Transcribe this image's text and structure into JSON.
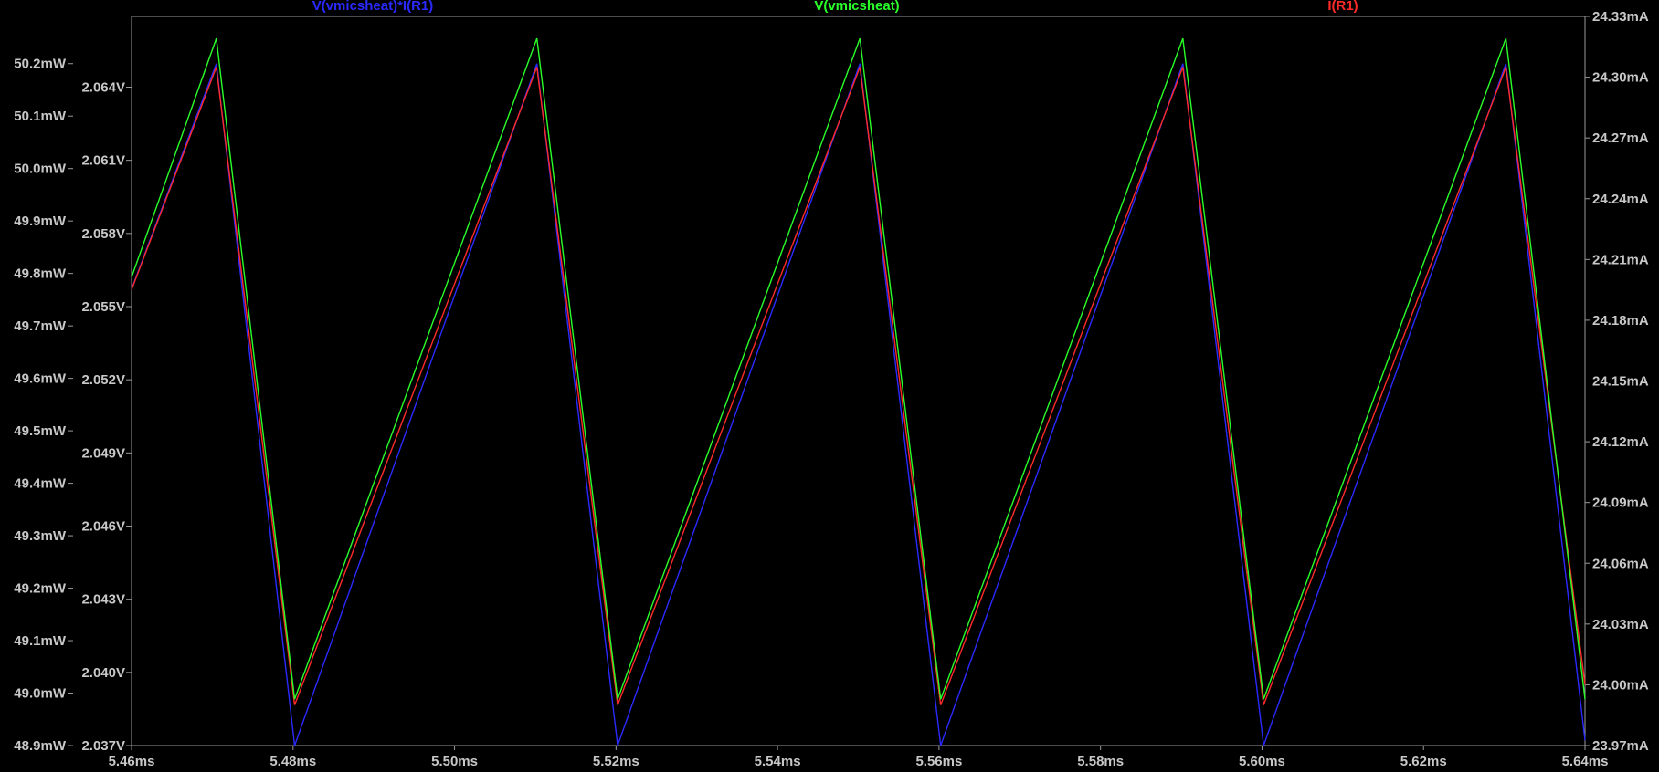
{
  "chart_data": {
    "type": "line",
    "x_unit": "ms",
    "xlim": [
      5.46,
      5.64
    ],
    "x_ticks": [
      "5.46ms",
      "5.48ms",
      "5.50ms",
      "5.52ms",
      "5.54ms",
      "5.56ms",
      "5.58ms",
      "5.60ms",
      "5.62ms",
      "5.64ms"
    ],
    "x_tick_values": [
      5.46,
      5.48,
      5.5,
      5.52,
      5.54,
      5.56,
      5.58,
      5.6,
      5.62,
      5.64
    ],
    "axes": {
      "power": {
        "ylim": [
          48.9,
          50.29
        ],
        "ticks": [
          "50.2mW",
          "50.1mW",
          "50.0mW",
          "49.9mW",
          "49.8mW",
          "49.7mW",
          "49.6mW",
          "49.5mW",
          "49.4mW",
          "49.3mW",
          "49.2mW",
          "49.1mW",
          "49.0mW",
          "48.9mW"
        ],
        "tick_values": [
          50.2,
          50.1,
          50.0,
          49.9,
          49.8,
          49.7,
          49.6,
          49.5,
          49.4,
          49.3,
          49.2,
          49.1,
          49.0,
          48.9
        ]
      },
      "voltage": {
        "ylim": [
          2.037,
          2.0669
        ],
        "ticks": [
          "2.064V",
          "2.061V",
          "2.058V",
          "2.055V",
          "2.052V",
          "2.049V",
          "2.046V",
          "2.043V",
          "2.040V",
          "2.037V"
        ],
        "tick_values": [
          2.064,
          2.061,
          2.058,
          2.055,
          2.052,
          2.049,
          2.046,
          2.043,
          2.04,
          2.037
        ]
      },
      "current": {
        "ylim": [
          23.97,
          24.33
        ],
        "ticks": [
          "24.33mA",
          "24.30mA",
          "24.27mA",
          "24.24mA",
          "24.21mA",
          "24.18mA",
          "24.15mA",
          "24.12mA",
          "24.09mA",
          "24.06mA",
          "24.03mA",
          "24.00mA",
          "23.97mA"
        ],
        "tick_values": [
          24.33,
          24.3,
          24.27,
          24.24,
          24.21,
          24.18,
          24.15,
          24.12,
          24.09,
          24.06,
          24.03,
          24.0,
          23.97
        ]
      }
    },
    "series": [
      {
        "name": "V(vmicsheat)*I(R1)",
        "axis": "power",
        "color": "#2a2aff",
        "x": [
          5.46,
          5.4705,
          5.4802,
          5.5102,
          5.5202,
          5.5502,
          5.5602,
          5.5902,
          5.6002,
          5.6302,
          5.64
        ],
        "values": [
          49.77,
          50.2,
          48.9,
          50.2,
          48.9,
          50.2,
          48.9,
          50.2,
          48.9,
          50.2,
          48.91
        ]
      },
      {
        "name": "V(vmicsheat)",
        "axis": "voltage",
        "color": "#2aff2a",
        "x": [
          5.46,
          5.4705,
          5.4802,
          5.5102,
          5.5202,
          5.5502,
          5.5602,
          5.5902,
          5.6002,
          5.6302,
          5.64
        ],
        "values": [
          2.0562,
          2.066,
          2.0389,
          2.066,
          2.0389,
          2.066,
          2.0389,
          2.066,
          2.0389,
          2.066,
          2.0389
        ]
      },
      {
        "name": "I(R1)",
        "axis": "current",
        "color": "#ff2a2a",
        "x": [
          5.46,
          5.4705,
          5.4802,
          5.5102,
          5.5202,
          5.5502,
          5.5602,
          5.5902,
          5.6002,
          5.6302,
          5.64
        ],
        "values": [
          24.195,
          24.305,
          23.99,
          24.305,
          23.99,
          24.305,
          23.99,
          24.305,
          23.99,
          24.305,
          24.0
        ]
      }
    ],
    "grid": false,
    "legend_placement": "top"
  }
}
